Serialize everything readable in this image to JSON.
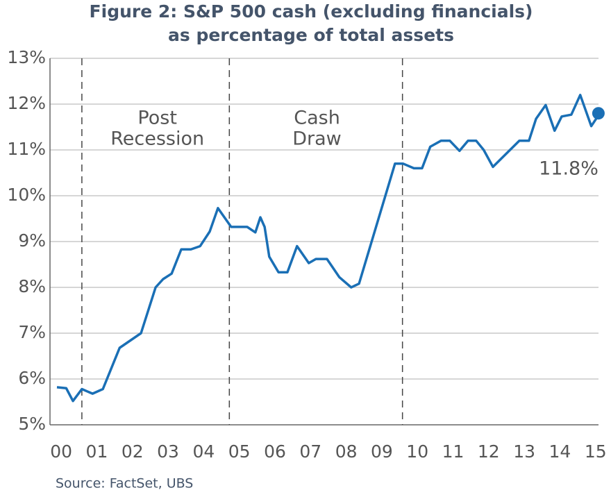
{
  "chart_data": {
    "type": "line",
    "title": [
      "Figure 2: S&P 500 cash (excluding financials)",
      "as percentage of total assets"
    ],
    "source": "Source: FactSet, UBS",
    "x": [
      -0.12,
      0.14,
      0.33,
      0.58,
      0.88,
      1.17,
      1.64,
      2.24,
      2.65,
      2.86,
      3.1,
      3.37,
      3.64,
      3.9,
      4.17,
      4.4,
      4.77,
      5.22,
      5.45,
      5.59,
      5.71,
      5.84,
      6.1,
      6.35,
      6.62,
      6.95,
      7.15,
      7.46,
      7.81,
      8.14,
      8.36,
      9.37,
      9.6,
      9.9,
      10.13,
      10.36,
      10.66,
      10.91,
      11.18,
      11.42,
      11.65,
      11.86,
      12.12,
      12.86,
      13.13,
      13.33,
      13.6,
      13.85,
      14.05,
      14.32,
      14.57,
      14.88,
      15.12
    ],
    "series": [
      {
        "name": "S&P 500 cash",
        "color": "#1a6fb5",
        "values": [
          5.82,
          5.8,
          5.52,
          5.78,
          5.68,
          5.78,
          6.68,
          7.0,
          8.0,
          8.18,
          8.3,
          8.83,
          8.83,
          8.9,
          9.22,
          9.73,
          9.32,
          9.32,
          9.2,
          9.53,
          9.32,
          8.67,
          8.33,
          8.33,
          8.9,
          8.53,
          8.62,
          8.62,
          8.22,
          8.0,
          8.08,
          10.7,
          10.7,
          10.6,
          10.6,
          11.07,
          11.2,
          11.2,
          10.98,
          11.2,
          11.2,
          11.0,
          10.63,
          11.2,
          11.2,
          11.68,
          11.98,
          11.42,
          11.73,
          11.77,
          12.2,
          11.52,
          11.8
        ],
        "value_labels": [
          null,
          null,
          null,
          null,
          null,
          null,
          null,
          null,
          null,
          null,
          null,
          null,
          null,
          null,
          null,
          null,
          null,
          null,
          null,
          null,
          null,
          null,
          null,
          null,
          null,
          null,
          null,
          null,
          null,
          null,
          null,
          null,
          null,
          null,
          null,
          null,
          null,
          null,
          null,
          null,
          null,
          null,
          null,
          null,
          null,
          null,
          null,
          null,
          null,
          null,
          null,
          null,
          "11.8%"
        ]
      }
    ],
    "xlim": [
      -0.12,
      15.2
    ],
    "xticks": [
      {
        "value": 0,
        "label": "00"
      },
      {
        "value": 1,
        "label": "01"
      },
      {
        "value": 2,
        "label": "02"
      },
      {
        "value": 3,
        "label": "03"
      },
      {
        "value": 4,
        "label": "04"
      },
      {
        "value": 5,
        "label": "05"
      },
      {
        "value": 6,
        "label": "06"
      },
      {
        "value": 7,
        "label": "07"
      },
      {
        "value": 8,
        "label": "08"
      },
      {
        "value": 9,
        "label": "09"
      },
      {
        "value": 10,
        "label": "10"
      },
      {
        "value": 11,
        "label": "11"
      },
      {
        "value": 12,
        "label": "12"
      },
      {
        "value": 13,
        "label": "13"
      },
      {
        "value": 14,
        "label": "14"
      },
      {
        "value": 15,
        "label": "15"
      }
    ],
    "ylim": [
      5,
      13
    ],
    "yticks": [
      {
        "value": 5,
        "label": "5%"
      },
      {
        "value": 6,
        "label": "6%"
      },
      {
        "value": 7,
        "label": "7%"
      },
      {
        "value": 8,
        "label": "8%"
      },
      {
        "value": 9,
        "label": "9%"
      },
      {
        "value": 10,
        "label": "10%"
      },
      {
        "value": 11,
        "label": "11%"
      },
      {
        "value": 12,
        "label": "12%"
      },
      {
        "value": 13,
        "label": "13%"
      }
    ],
    "grid": true,
    "dividers": [
      0.58,
      4.72,
      9.58
    ],
    "annotations": [
      {
        "lines": [
          "Post",
          "Recession"
        ],
        "x": 2.7
      },
      {
        "lines": [
          "Cash",
          "Draw"
        ],
        "x": 7.18
      }
    ]
  }
}
